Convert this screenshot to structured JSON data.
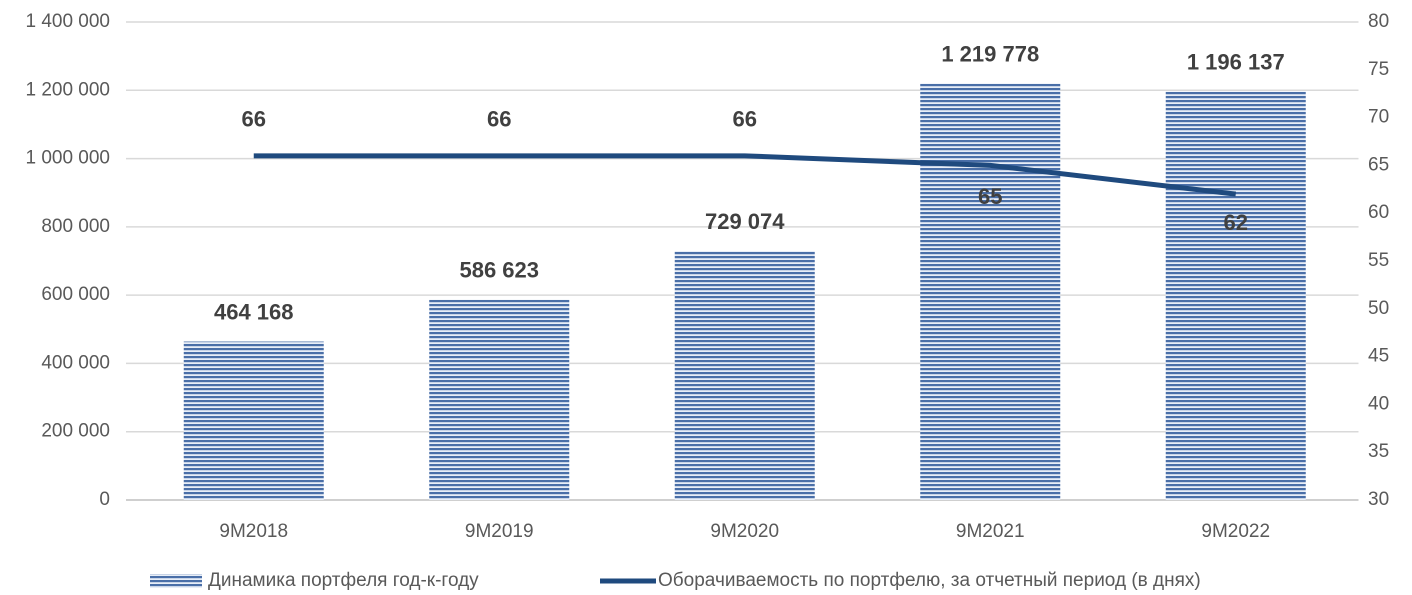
{
  "chart_data": {
    "type": "bar",
    "categories": [
      "9M2018",
      "9M2019",
      "9M2020",
      "9M2021",
      "9M2022"
    ],
    "series": [
      {
        "name": "Динамика портфеля год-к-году",
        "type": "bar",
        "color": "#4a6fa8",
        "values": [
          464168,
          586623,
          729074,
          1219778,
          1196137
        ],
        "value_labels": [
          "464 168",
          "586 623",
          "729 074",
          "1 219 778",
          "1 196 137"
        ]
      },
      {
        "name": "Оборачиваемость по портфелю, за отчетный период (в днях)",
        "type": "line",
        "color": "#1f4a7e",
        "axis": "y2",
        "values": [
          66,
          66,
          66,
          65,
          62
        ]
      }
    ],
    "ylim": [
      0,
      1400000
    ],
    "yticks": [
      0,
      {
        "value": 200000,
        "label": "200 000"
      },
      {
        "value": 400000,
        "label": "400 000"
      },
      {
        "value": 600000,
        "label": "600 000"
      },
      {
        "value": 800000,
        "label": "800 000"
      },
      {
        "value": 1000000,
        "label": "1 000 000"
      },
      {
        "value": 1200000,
        "label": "1 200 000"
      },
      {
        "value": 1400000,
        "label": "1 400 000"
      }
    ],
    "y2lim": [
      30,
      80
    ],
    "y2ticks": [
      30,
      35,
      40,
      45,
      50,
      55,
      60,
      65,
      70,
      75,
      80
    ],
    "grid": true,
    "legend": "bottom"
  }
}
